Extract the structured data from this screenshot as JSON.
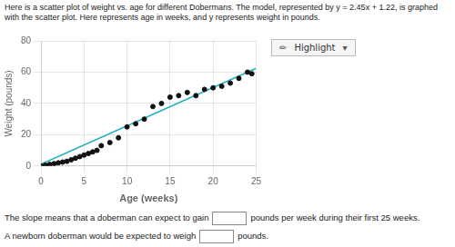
{
  "chart_data": {
    "type": "scatter",
    "x_label": "Age (weeks)",
    "y_label": "Weight (pounds)",
    "xlim": [
      0,
      25
    ],
    "ylim": [
      0,
      80
    ],
    "xticks": [
      0,
      5,
      10,
      15,
      20,
      25
    ],
    "yticks": [
      0,
      20,
      40,
      60,
      80
    ],
    "grid": true,
    "series": [
      {
        "type": "scatter",
        "color": "#111111",
        "x": [
          0,
          0.5,
          1,
          1.5,
          2,
          2.5,
          3,
          3.5,
          4,
          4.5,
          5,
          5.5,
          6,
          6.5,
          7,
          8,
          9,
          10,
          11,
          12,
          13,
          14,
          15,
          16,
          17,
          18,
          19,
          20,
          21,
          22,
          23,
          24,
          24.5
        ],
        "values": [
          0,
          0.5,
          1,
          1.5,
          2,
          2.5,
          3,
          4,
          5,
          6,
          7,
          8,
          9,
          10,
          13,
          15,
          18,
          25,
          27,
          30,
          38,
          40,
          44,
          45,
          47,
          45,
          49,
          50,
          51,
          53,
          56,
          60,
          59
        ]
      },
      {
        "type": "line",
        "color": "#20B0C0",
        "x": [
          0,
          25
        ],
        "values": [
          1.22,
          62.47
        ]
      }
    ],
    "annotations": [
      "Here is a scatter plot of weight vs. age for different Dobermans. The model, represented by y = 2.45x + 1.22, is graphed with the scatter plot. Here",
      "represents age in weeks, and y represents weight in pounds.",
      "✏",
      "Highlight",
      "▾",
      "The slope means that a doberman can expect to gain",
      "pounds per week during their first 25 weeks.",
      "A newborn doberman would be expected to weigh",
      "pounds."
    ]
  }
}
